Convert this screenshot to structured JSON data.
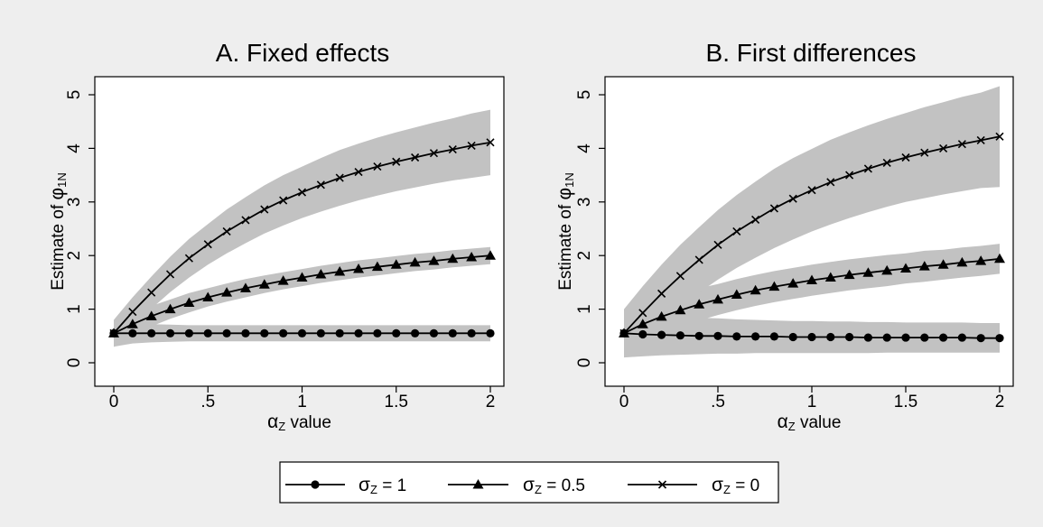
{
  "chart_data": [
    {
      "type": "line",
      "title": "A. Fixed effects",
      "xlabel_symbol": "α",
      "xlabel_sub": "Z",
      "xlabel_rest": " value",
      "ylabel_text": "Estimate of ",
      "ylabel_symbol": "φ",
      "ylabel_sub": "1N",
      "xlim": [
        0,
        2
      ],
      "ylim": [
        0,
        5
      ],
      "xticks": [
        0,
        0.5,
        1,
        1.5,
        2
      ],
      "xtick_labels": [
        "0",
        ".5",
        "1",
        "1.5",
        "2"
      ],
      "yticks": [
        0,
        1,
        2,
        3,
        4,
        5
      ],
      "ytick_labels": [
        "0",
        "1",
        "2",
        "3",
        "4",
        "5"
      ],
      "x": [
        0,
        0.1,
        0.2,
        0.3,
        0.4,
        0.5,
        0.6,
        0.7,
        0.8,
        0.9,
        1.0,
        1.1,
        1.2,
        1.3,
        1.4,
        1.5,
        1.6,
        1.7,
        1.8,
        1.9,
        2.0
      ],
      "series": [
        {
          "name_symbol": "σ",
          "name_sub": "Z",
          "name_rest": " = 1",
          "marker": "circle",
          "values": [
            0.55,
            0.55,
            0.55,
            0.55,
            0.55,
            0.55,
            0.55,
            0.55,
            0.55,
            0.55,
            0.55,
            0.55,
            0.55,
            0.55,
            0.55,
            0.55,
            0.55,
            0.55,
            0.55,
            0.55,
            0.55
          ],
          "ci_lower": [
            0.3,
            0.36,
            0.38,
            0.39,
            0.4,
            0.4,
            0.4,
            0.4,
            0.4,
            0.4,
            0.4,
            0.4,
            0.4,
            0.4,
            0.4,
            0.4,
            0.4,
            0.4,
            0.4,
            0.4,
            0.4
          ],
          "ci_upper": [
            0.8,
            0.74,
            0.72,
            0.71,
            0.7,
            0.7,
            0.7,
            0.7,
            0.7,
            0.7,
            0.7,
            0.7,
            0.7,
            0.7,
            0.7,
            0.7,
            0.7,
            0.7,
            0.7,
            0.7,
            0.7
          ]
        },
        {
          "name_symbol": "σ",
          "name_sub": "Z",
          "name_rest": " = 0.5",
          "marker": "triangle",
          "values": [
            0.55,
            0.72,
            0.87,
            1.0,
            1.12,
            1.22,
            1.31,
            1.39,
            1.46,
            1.53,
            1.59,
            1.65,
            1.7,
            1.75,
            1.79,
            1.83,
            1.87,
            1.9,
            1.94,
            1.97,
            2.0
          ],
          "ci_lower": [
            0.3,
            0.52,
            0.68,
            0.82,
            0.94,
            1.05,
            1.14,
            1.22,
            1.3,
            1.37,
            1.43,
            1.49,
            1.54,
            1.59,
            1.63,
            1.67,
            1.71,
            1.74,
            1.78,
            1.81,
            1.84
          ],
          "ci_upper": [
            0.8,
            0.92,
            1.06,
            1.18,
            1.3,
            1.39,
            1.48,
            1.56,
            1.63,
            1.69,
            1.75,
            1.81,
            1.86,
            1.91,
            1.95,
            1.99,
            2.03,
            2.06,
            2.1,
            2.13,
            2.16
          ]
        },
        {
          "name_symbol": "σ",
          "name_sub": "Z",
          "name_rest": " = 0",
          "marker": "x",
          "values": [
            0.55,
            0.95,
            1.31,
            1.65,
            1.95,
            2.21,
            2.45,
            2.66,
            2.86,
            3.03,
            3.18,
            3.32,
            3.45,
            3.56,
            3.66,
            3.75,
            3.83,
            3.91,
            3.98,
            4.05,
            4.11
          ],
          "ci_lower": [
            0.3,
            0.68,
            1.01,
            1.32,
            1.59,
            1.83,
            2.04,
            2.23,
            2.41,
            2.56,
            2.7,
            2.82,
            2.93,
            3.03,
            3.12,
            3.2,
            3.27,
            3.34,
            3.4,
            3.45,
            3.5
          ],
          "ci_upper": [
            0.8,
            1.22,
            1.61,
            1.98,
            2.31,
            2.59,
            2.86,
            3.09,
            3.31,
            3.5,
            3.66,
            3.82,
            3.97,
            4.09,
            4.2,
            4.3,
            4.39,
            4.48,
            4.56,
            4.65,
            4.72
          ]
        }
      ]
    },
    {
      "type": "line",
      "title": "B. First differences",
      "xlabel_symbol": "α",
      "xlabel_sub": "Z",
      "xlabel_rest": " value",
      "ylabel_text": "Estimate of ",
      "ylabel_symbol": "φ",
      "ylabel_sub": "1N",
      "xlim": [
        0,
        2
      ],
      "ylim": [
        0,
        5
      ],
      "xticks": [
        0,
        0.5,
        1,
        1.5,
        2
      ],
      "xtick_labels": [
        "0",
        ".5",
        "1",
        "1.5",
        "2"
      ],
      "yticks": [
        0,
        1,
        2,
        3,
        4,
        5
      ],
      "ytick_labels": [
        "0",
        "1",
        "2",
        "3",
        "4",
        "5"
      ],
      "x": [
        0,
        0.1,
        0.2,
        0.3,
        0.4,
        0.5,
        0.6,
        0.7,
        0.8,
        0.9,
        1.0,
        1.1,
        1.2,
        1.3,
        1.4,
        1.5,
        1.6,
        1.7,
        1.8,
        1.9,
        2.0
      ],
      "series": [
        {
          "name_symbol": "σ",
          "name_sub": "Z",
          "name_rest": " = 1",
          "marker": "circle",
          "values": [
            0.55,
            0.53,
            0.52,
            0.51,
            0.5,
            0.5,
            0.49,
            0.49,
            0.49,
            0.48,
            0.48,
            0.48,
            0.48,
            0.47,
            0.47,
            0.47,
            0.47,
            0.47,
            0.47,
            0.46,
            0.46
          ],
          "ci_lower": [
            0.1,
            0.12,
            0.14,
            0.15,
            0.16,
            0.17,
            0.17,
            0.18,
            0.18,
            0.18,
            0.18,
            0.18,
            0.18,
            0.18,
            0.19,
            0.19,
            0.19,
            0.19,
            0.19,
            0.19,
            0.19
          ],
          "ci_upper": [
            1.0,
            0.94,
            0.9,
            0.87,
            0.84,
            0.83,
            0.81,
            0.8,
            0.79,
            0.78,
            0.78,
            0.77,
            0.77,
            0.76,
            0.76,
            0.75,
            0.75,
            0.75,
            0.75,
            0.74,
            0.74
          ]
        },
        {
          "name_symbol": "σ",
          "name_sub": "Z",
          "name_rest": " = 0.5",
          "marker": "triangle",
          "values": [
            0.55,
            0.72,
            0.86,
            0.98,
            1.09,
            1.18,
            1.27,
            1.35,
            1.42,
            1.48,
            1.54,
            1.59,
            1.64,
            1.68,
            1.72,
            1.76,
            1.8,
            1.83,
            1.87,
            1.9,
            1.94
          ],
          "ci_lower": [
            0.1,
            0.33,
            0.52,
            0.66,
            0.79,
            0.89,
            0.98,
            1.06,
            1.13,
            1.19,
            1.25,
            1.3,
            1.35,
            1.39,
            1.43,
            1.48,
            1.51,
            1.55,
            1.59,
            1.62,
            1.66
          ],
          "ci_upper": [
            1.0,
            1.11,
            1.2,
            1.3,
            1.39,
            1.47,
            1.56,
            1.64,
            1.71,
            1.77,
            1.83,
            1.88,
            1.93,
            1.97,
            2.01,
            2.04,
            2.09,
            2.11,
            2.15,
            2.18,
            2.22
          ]
        },
        {
          "name_symbol": "σ",
          "name_sub": "Z",
          "name_rest": " = 0",
          "marker": "x",
          "values": [
            0.55,
            0.93,
            1.29,
            1.62,
            1.92,
            2.2,
            2.45,
            2.67,
            2.88,
            3.06,
            3.22,
            3.37,
            3.5,
            3.62,
            3.73,
            3.83,
            3.92,
            4.0,
            4.08,
            4.15,
            4.22
          ],
          "ci_lower": [
            0.1,
            0.43,
            0.75,
            1.04,
            1.31,
            1.55,
            1.77,
            1.96,
            2.14,
            2.3,
            2.45,
            2.58,
            2.7,
            2.81,
            2.91,
            3.0,
            3.07,
            3.14,
            3.2,
            3.26,
            3.28
          ],
          "ci_upper": [
            1.0,
            1.43,
            1.83,
            2.2,
            2.53,
            2.85,
            3.13,
            3.38,
            3.62,
            3.82,
            3.99,
            4.16,
            4.3,
            4.43,
            4.55,
            4.66,
            4.77,
            4.86,
            4.96,
            5.04,
            5.16
          ]
        }
      ]
    }
  ]
}
